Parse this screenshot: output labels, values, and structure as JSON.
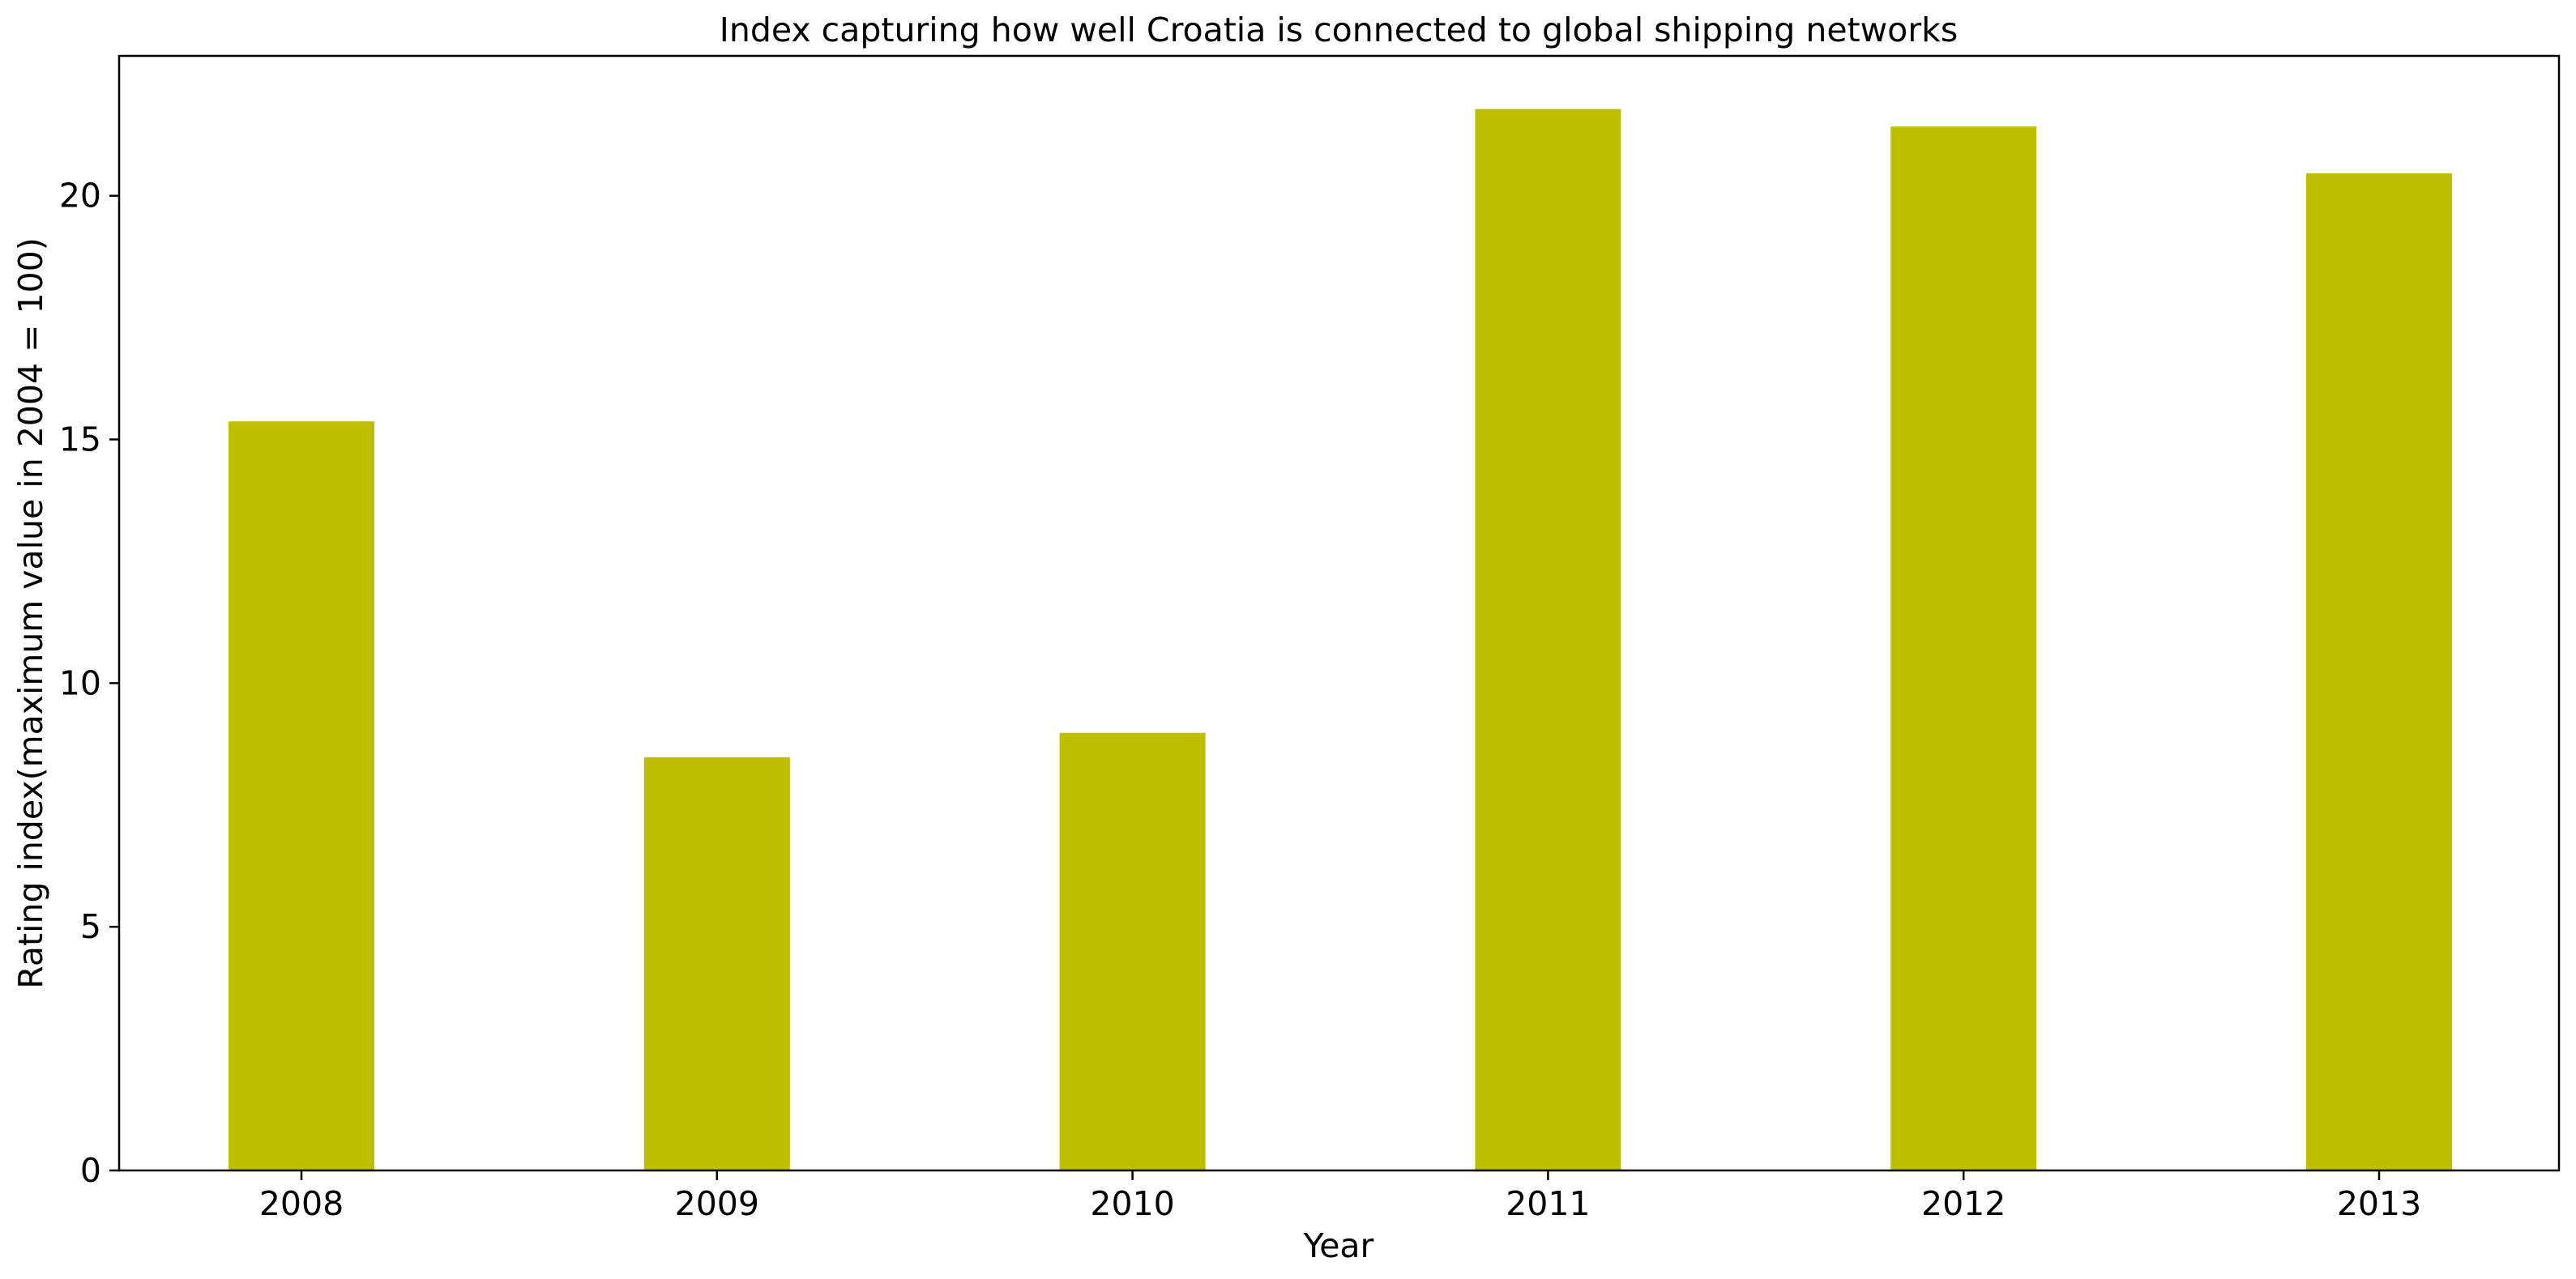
{
  "chart_data": {
    "type": "bar",
    "title": "Index capturing how well Croatia is connected to global shipping networks",
    "xlabel": "Year",
    "ylabel": "Rating index(maximum value in 2004 = 100)",
    "categories": [
      "2008",
      "2009",
      "2010",
      "2011",
      "2012",
      "2013"
    ],
    "values": [
      15.37,
      8.48,
      8.98,
      21.78,
      21.42,
      20.46
    ],
    "ylim": [
      0,
      22.87
    ],
    "yticks": [
      0,
      5,
      10,
      15,
      20
    ],
    "grid": false,
    "legend": "none",
    "bar_color": "#bfbf00"
  }
}
